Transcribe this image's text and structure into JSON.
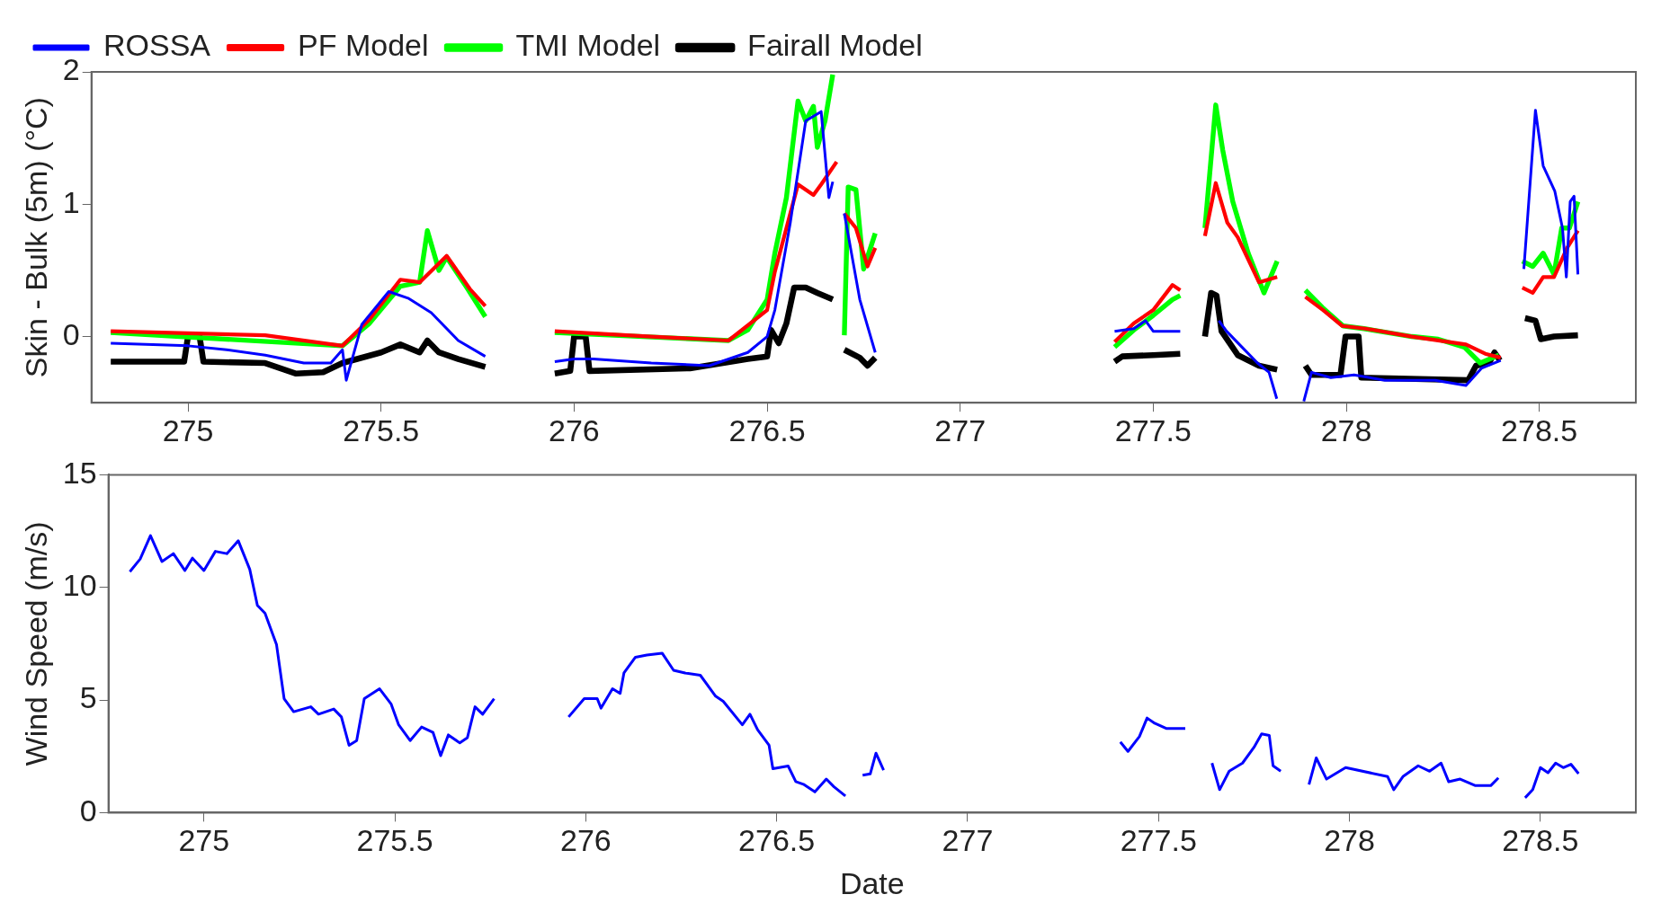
{
  "chart_data": [
    {
      "type": "line",
      "ylabel": "Skin - Bulk (5m) (°C)",
      "xlim": [
        274.75,
        278.75
      ],
      "ylim": [
        -0.5,
        2
      ],
      "xticks": [
        275,
        275.5,
        276,
        276.5,
        277,
        277.5,
        278,
        278.5
      ],
      "yticks": [
        0,
        1,
        2
      ],
      "legend": "top left",
      "marker": "none",
      "line_style": "solid",
      "series": [
        {
          "name": "ROSSA",
          "color": "#0000ff",
          "x": [
            274.8,
            275.0,
            275.1,
            275.2,
            275.3,
            275.37,
            275.4,
            275.41,
            275.45,
            275.52,
            275.57,
            275.63,
            275.7,
            275.77,
            275.86,
            275.95,
            276.0,
            276.05,
            276.2,
            276.35,
            276.45,
            276.5,
            276.52,
            276.56,
            276.6,
            276.64,
            276.66,
            276.67,
            276.69,
            276.7,
            276.74,
            276.78,
            277.1,
            277.4,
            277.45,
            277.48,
            277.5,
            277.57,
            277.6,
            277.67,
            277.69,
            277.73,
            277.77,
            277.8,
            277.82,
            277.86,
            277.89,
            277.91,
            277.96,
            278.02,
            278.1,
            278.23,
            278.31,
            278.35,
            278.4,
            278.43,
            278.46,
            278.49,
            278.51,
            278.54,
            278.56,
            278.57,
            278.58,
            278.59,
            278.6
          ],
          "values": [
            -0.05,
            -0.07,
            -0.1,
            -0.14,
            -0.2,
            -0.2,
            -0.1,
            -0.33,
            0.09,
            0.34,
            0.29,
            0.18,
            -0.03,
            -0.15,
            null,
            -0.19,
            -0.17,
            -0.17,
            -0.2,
            -0.22,
            -0.12,
            0.0,
            0.2,
            0.86,
            1.63,
            1.7,
            1.05,
            1.17,
            null,
            0.93,
            0.28,
            -0.12,
            null,
            0.04,
            0.06,
            0.12,
            0.04,
            0.04,
            null,
            0.12,
            0.04,
            -0.08,
            -0.2,
            -0.27,
            -0.47,
            null,
            -0.49,
            -0.27,
            -0.31,
            -0.29,
            -0.33,
            -0.33,
            -0.37,
            -0.24,
            -0.18,
            null,
            0.51,
            1.71,
            1.29,
            1.1,
            0.82,
            0.45,
            1.02,
            1.06,
            0.47
          ]
        },
        {
          "name": "PF Model",
          "color": "#ff0000",
          "x": [
            274.8,
            275.2,
            275.4,
            275.47,
            275.55,
            275.6,
            275.67,
            275.73,
            275.77,
            275.86,
            275.95,
            276.2,
            276.4,
            276.5,
            276.52,
            276.56,
            276.58,
            276.62,
            276.64,
            276.68,
            276.69,
            276.7,
            276.73,
            276.76,
            276.78,
            277.1,
            277.4,
            277.45,
            277.5,
            277.55,
            277.57,
            277.6,
            277.634,
            277.662,
            277.692,
            277.719,
            277.774,
            277.821,
            277.86,
            277.894,
            277.94,
            277.99,
            278.05,
            278.17,
            278.31,
            278.36,
            278.4,
            278.43,
            278.456,
            278.483,
            278.51,
            278.538,
            278.572,
            278.6
          ],
          "values": [
            0.04,
            0.01,
            -0.07,
            0.13,
            0.43,
            0.41,
            0.61,
            0.36,
            0.23,
            null,
            0.04,
            0.0,
            -0.03,
            0.2,
            0.49,
            0.93,
            1.15,
            1.07,
            1.15,
            1.32,
            null,
            0.93,
            0.82,
            0.53,
            0.67,
            null,
            -0.04,
            0.1,
            0.2,
            0.39,
            0.35,
            null,
            0.76,
            1.16,
            0.86,
            0.75,
            0.41,
            0.45,
            null,
            0.3,
            0.2,
            0.08,
            0.06,
            0.0,
            -0.06,
            -0.13,
            -0.16,
            null,
            0.37,
            0.33,
            0.45,
            0.45,
            0.67,
            0.8
          ]
        },
        {
          "name": "TMI Model",
          "color": "#00ff00",
          "x": [
            274.8,
            275.4,
            275.47,
            275.55,
            275.6,
            275.62,
            275.65,
            275.67,
            275.72,
            275.77,
            275.86,
            275.95,
            276.4,
            276.45,
            276.5,
            276.52,
            276.55,
            276.58,
            276.6,
            276.62,
            276.63,
            276.65,
            276.67,
            276.69,
            276.7,
            276.71,
            276.73,
            276.75,
            276.78,
            277.1,
            277.4,
            277.45,
            277.5,
            277.55,
            277.57,
            277.6,
            277.634,
            277.662,
            277.68,
            277.706,
            277.746,
            277.787,
            277.821,
            277.86,
            277.894,
            277.938,
            277.992,
            278.046,
            278.17,
            278.238,
            278.306,
            278.347,
            278.395,
            278.43,
            278.456,
            278.483,
            278.51,
            278.538,
            278.558,
            278.578,
            278.6
          ],
          "values": [
            0.03,
            -0.07,
            0.1,
            0.38,
            0.41,
            0.8,
            0.5,
            0.6,
            0.38,
            0.15,
            null,
            0.03,
            -0.03,
            0.05,
            0.28,
            0.63,
            1.05,
            1.78,
            1.63,
            1.74,
            1.43,
            1.63,
            1.98,
            null,
            0.01,
            1.13,
            1.11,
            0.51,
            0.78,
            null,
            -0.08,
            0.05,
            0.16,
            0.28,
            0.31,
            null,
            0.82,
            1.75,
            1.41,
            1.02,
            0.63,
            0.33,
            0.57,
            null,
            0.35,
            0.22,
            0.08,
            0.06,
            0.0,
            -0.02,
            -0.08,
            -0.2,
            -0.14,
            null,
            0.57,
            0.53,
            0.63,
            0.47,
            0.82,
            0.82,
            1.02
          ]
        },
        {
          "name": "Fairall Model",
          "color": "#000000",
          "x": [
            274.8,
            274.99,
            275.0,
            275.03,
            275.04,
            275.2,
            275.28,
            275.35,
            275.4,
            275.5,
            275.55,
            275.6,
            275.62,
            275.65,
            275.7,
            275.77,
            275.86,
            275.95,
            275.99,
            276.0,
            276.03,
            276.04,
            276.3,
            276.45,
            276.5,
            276.51,
            276.53,
            276.55,
            276.57,
            276.6,
            276.63,
            276.67,
            276.69,
            276.7,
            276.74,
            276.76,
            276.78,
            277.1,
            277.4,
            277.42,
            277.5,
            277.57,
            277.6,
            277.634,
            277.65,
            277.664,
            277.677,
            277.719,
            277.774,
            277.821,
            277.86,
            277.894,
            277.91,
            277.985,
            277.998,
            278.032,
            278.039,
            278.316,
            278.336,
            278.37,
            278.384,
            278.398,
            278.43,
            278.463,
            278.49,
            278.504,
            278.538,
            278.6
          ],
          "values": [
            -0.19,
            -0.19,
            0.0,
            0.0,
            -0.19,
            -0.2,
            -0.28,
            -0.27,
            -0.2,
            -0.12,
            -0.06,
            -0.12,
            -0.03,
            -0.12,
            -0.17,
            -0.23,
            null,
            -0.28,
            -0.26,
            0.0,
            0.0,
            -0.26,
            -0.24,
            -0.17,
            -0.15,
            0.05,
            -0.05,
            0.1,
            0.37,
            0.37,
            0.33,
            0.28,
            null,
            -0.1,
            -0.16,
            -0.22,
            -0.16,
            null,
            -0.19,
            -0.15,
            -0.14,
            -0.13,
            null,
            0.0,
            0.33,
            0.31,
            0.04,
            -0.14,
            -0.22,
            -0.25,
            null,
            -0.22,
            -0.29,
            -0.29,
            0.0,
            0.0,
            -0.31,
            -0.33,
            -0.22,
            -0.2,
            -0.12,
            -0.18,
            null,
            0.14,
            0.12,
            -0.02,
            0.0,
            0.01
          ]
        }
      ]
    },
    {
      "type": "line",
      "xlabel": "Date",
      "ylabel": "Wind Speed (m/s)",
      "xlim": [
        274.75,
        278.75
      ],
      "ylim": [
        0,
        15
      ],
      "xticks": [
        275,
        275.5,
        276,
        276.5,
        277,
        277.5,
        278,
        278.5
      ],
      "yticks": [
        0,
        5,
        10,
        15
      ],
      "marker": "none",
      "line_style": "solid",
      "series": [
        {
          "color": "#0000ff",
          "x": [
            274.806,
            274.833,
            274.86,
            274.89,
            274.92,
            274.95,
            274.97,
            275.0,
            275.03,
            275.06,
            275.09,
            275.12,
            275.14,
            275.16,
            275.19,
            275.21,
            275.235,
            275.28,
            275.3,
            275.34,
            275.36,
            275.38,
            275.4,
            275.42,
            275.46,
            275.49,
            275.51,
            275.54,
            275.57,
            275.6,
            275.62,
            275.64,
            275.67,
            275.69,
            275.71,
            275.73,
            275.76,
            275.86,
            275.955,
            275.996,
            276.03,
            276.04,
            276.07,
            276.09,
            276.1,
            276.13,
            276.16,
            276.2,
            276.23,
            276.26,
            276.3,
            276.34,
            276.36,
            276.41,
            276.43,
            276.45,
            276.48,
            276.49,
            276.53,
            276.55,
            276.57,
            276.6,
            276.63,
            276.65,
            276.68,
            276.7,
            276.725,
            276.745,
            276.76,
            276.78,
            277.1,
            277.4,
            277.42,
            277.45,
            277.47,
            277.49,
            277.52,
            277.57,
            277.6,
            277.64,
            277.66,
            277.685,
            277.72,
            277.75,
            277.77,
            277.79,
            277.8,
            277.82,
            277.86,
            277.894,
            277.913,
            277.94,
            277.99,
            278.1,
            278.116,
            278.14,
            278.18,
            278.21,
            278.24,
            278.26,
            278.29,
            278.33,
            278.37,
            278.39,
            278.43,
            278.46,
            278.48,
            278.5,
            278.52,
            278.54,
            278.56,
            278.58,
            278.6
          ],
          "values": [
            10.7,
            11.26,
            12.3,
            11.15,
            11.5,
            10.75,
            11.3,
            10.75,
            11.6,
            11.5,
            12.07,
            10.8,
            9.2,
            8.85,
            7.47,
            5.06,
            4.48,
            4.7,
            4.37,
            4.6,
            4.25,
            2.99,
            3.2,
            5.06,
            5.5,
            4.83,
            3.9,
            3.2,
            3.8,
            3.56,
            2.53,
            3.45,
            3.1,
            3.33,
            4.7,
            4.37,
            5.06,
            null,
            4.25,
            5.06,
            5.06,
            4.64,
            5.5,
            5.29,
            6.2,
            6.9,
            7.0,
            7.08,
            6.32,
            6.2,
            6.1,
            5.17,
            4.94,
            3.9,
            4.37,
            3.68,
            2.99,
            1.95,
            2.07,
            1.38,
            1.26,
            0.92,
            1.49,
            1.15,
            0.74,
            null,
            1.66,
            1.72,
            2.64,
            1.89,
            null,
            3.14,
            2.72,
            3.38,
            4.2,
            3.97,
            3.74,
            3.74,
            null,
            2.2,
            1.02,
            1.84,
            2.2,
            2.9,
            3.5,
            3.43,
            2.08,
            1.84,
            null,
            1.25,
            2.43,
            1.49,
            2.0,
            1.6,
            1.02,
            1.6,
            2.08,
            1.84,
            2.2,
            1.37,
            1.49,
            1.2,
            1.2,
            1.54,
            null,
            0.66,
            1.02,
            2.0,
            1.77,
            2.2,
            2.0,
            2.15,
            1.73
          ]
        }
      ]
    }
  ]
}
